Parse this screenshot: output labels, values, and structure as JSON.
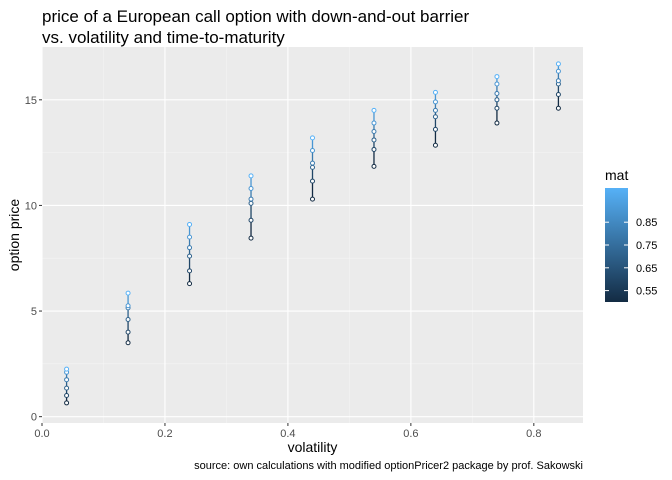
{
  "title": "price of a European call option with down-and-out barrier\nvs. volatility and time-to-maturity",
  "caption": "source: own calculations with modified optionPricer2 package by prof. Sakowski",
  "chart_data": {
    "type": "scatter",
    "xlabel": "volatility",
    "ylabel": "option price",
    "xlim": [
      0.0,
      0.88
    ],
    "ylim": [
      -0.3,
      17.5
    ],
    "x_ticks": [
      0.0,
      0.2,
      0.4,
      0.6,
      0.8
    ],
    "x_tick_labels": [
      "0.0",
      "0.2",
      "0.4",
      "0.6",
      "0.8"
    ],
    "y_ticks": [
      0,
      5,
      10,
      15
    ],
    "y_tick_labels": [
      "0",
      "5",
      "10",
      "15"
    ],
    "grid": true,
    "legend": {
      "title": "mat",
      "placement": "right",
      "range": [
        0.5,
        1.0
      ],
      "ticks": [
        0.55,
        0.65,
        0.75,
        0.85
      ],
      "tick_labels": [
        "0.55",
        "0.65",
        "0.75",
        "0.85"
      ],
      "color_low": "#132b43",
      "color_high": "#56b1f7"
    },
    "maturities": [
      0.5,
      0.6,
      0.7,
      0.8,
      0.9,
      1.0
    ],
    "groups": [
      {
        "volatility": 0.04,
        "prices": [
          0.65,
          1.0,
          1.35,
          1.75,
          2.1,
          2.25
        ]
      },
      {
        "volatility": 0.14,
        "prices": [
          3.5,
          4.0,
          4.6,
          5.15,
          5.25,
          5.85
        ]
      },
      {
        "volatility": 0.24,
        "prices": [
          6.3,
          6.9,
          7.6,
          8.0,
          8.5,
          9.1
        ]
      },
      {
        "volatility": 0.34,
        "prices": [
          8.45,
          9.3,
          10.1,
          10.3,
          10.8,
          11.4
        ]
      },
      {
        "volatility": 0.44,
        "prices": [
          10.3,
          11.15,
          11.8,
          12.0,
          12.6,
          13.2
        ]
      },
      {
        "volatility": 0.54,
        "prices": [
          11.85,
          12.65,
          13.1,
          13.5,
          13.9,
          14.5
        ]
      },
      {
        "volatility": 0.64,
        "prices": [
          12.85,
          13.6,
          14.2,
          14.5,
          14.9,
          15.35
        ]
      },
      {
        "volatility": 0.74,
        "prices": [
          13.9,
          14.6,
          15.0,
          15.3,
          15.75,
          16.1
        ]
      },
      {
        "volatility": 0.84,
        "prices": [
          14.6,
          15.25,
          15.75,
          15.9,
          16.35,
          16.7
        ]
      }
    ]
  }
}
